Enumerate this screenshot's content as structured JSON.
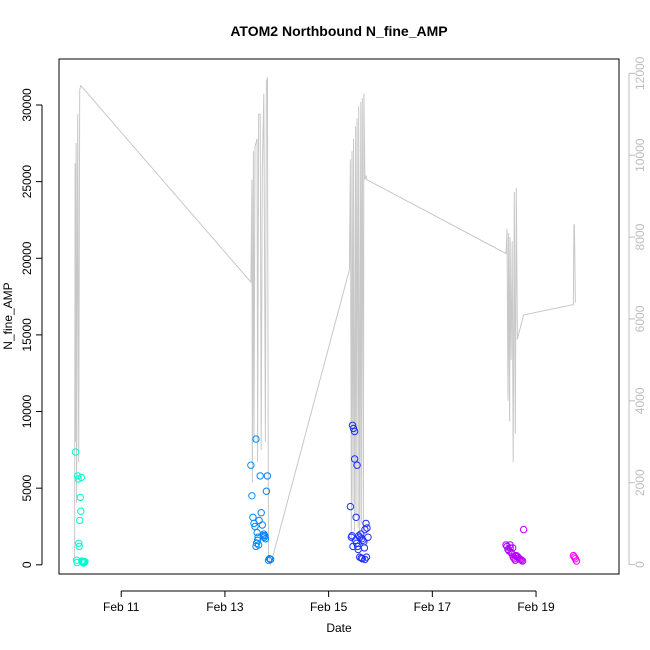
{
  "chart_data": {
    "type": "scatter",
    "title": "ATOM2 Northbound N_fine_AMP",
    "xlabel": "Date",
    "ylabel": "N_fine_AMP",
    "y2label": "",
    "xlim_days": [
      9.8,
      20.6
    ],
    "ylim": [
      -600,
      33000
    ],
    "y2lim": [
      -230,
      12350
    ],
    "x_ticks": [
      {
        "label": "Feb 11",
        "day": 11
      },
      {
        "label": "Feb 13",
        "day": 13
      },
      {
        "label": "Feb 15",
        "day": 15
      },
      {
        "label": "Feb 17",
        "day": 17
      },
      {
        "label": "Feb 19",
        "day": 19
      }
    ],
    "y_ticks": [
      0,
      5000,
      10000,
      15000,
      20000,
      25000,
      30000
    ],
    "y2_ticks": [
      0,
      2000,
      4000,
      6000,
      8000,
      10000,
      12000
    ],
    "grid": false,
    "legend": "none",
    "colors": {
      "line": "#c8c8c8",
      "right_axis": "#bdbdbd",
      "point_gradient": [
        "#00ffd0",
        "#00c8ff",
        "#0040ff",
        "#6a00ff",
        "#ff00ff"
      ]
    },
    "series": [
      {
        "kind": "points",
        "axis": "left",
        "x": [
          10.12,
          10.14,
          10.15,
          10.16,
          10.17,
          10.18,
          10.19,
          10.2,
          10.21,
          10.22,
          10.23,
          10.24,
          10.25,
          10.26,
          10.27,
          10.28,
          10.29,
          10.3,
          13.5,
          13.52,
          13.54,
          13.56,
          13.58,
          13.6,
          13.62,
          13.63,
          13.64,
          13.66,
          13.68,
          13.7,
          13.72,
          13.74,
          13.76,
          13.78,
          13.8,
          13.82,
          13.84,
          13.86,
          13.88,
          13.6,
          13.61,
          13.65,
          13.75,
          13.77,
          15.42,
          15.44,
          15.46,
          15.48,
          15.5,
          15.52,
          15.54,
          15.56,
          15.58,
          15.6,
          15.62,
          15.64,
          15.66,
          15.68,
          15.7,
          15.72,
          15.74,
          15.76,
          15.5,
          15.55,
          15.6,
          15.65,
          15.7,
          15.45,
          15.47,
          15.53,
          15.57,
          15.63,
          15.69,
          15.73,
          18.42,
          18.44,
          18.46,
          18.48,
          18.5,
          18.52,
          18.54,
          18.56,
          18.58,
          18.6,
          18.62,
          18.64,
          18.66,
          18.68,
          18.7,
          18.72,
          18.74,
          18.76,
          18.5,
          18.55,
          18.6,
          19.72,
          19.74,
          19.76,
          19.78
        ],
        "y": [
          7350,
          300,
          150,
          5800,
          5600,
          1400,
          1200,
          2900,
          4400,
          3500,
          5700,
          250,
          200,
          180,
          120,
          150,
          160,
          200,
          6500,
          4500,
          3100,
          2700,
          2500,
          8200,
          2100,
          1600,
          1800,
          2900,
          5800,
          3400,
          2600,
          1900,
          1800,
          1700,
          4800,
          5800,
          300,
          400,
          350,
          1200,
          1400,
          1300,
          2000,
          1900,
          3800,
          1800,
          9100,
          8900,
          8700,
          1600,
          1400,
          1200,
          1900,
          1800,
          2000,
          1700,
          1600,
          1500,
          2300,
          2700,
          2400,
          1800,
          6900,
          6500,
          500,
          400,
          350,
          1900,
          1200,
          3100,
          1000,
          450,
          1100,
          500,
          1300,
          1200,
          1000,
          900,
          1100,
          800,
          700,
          500,
          400,
          300,
          600,
          550,
          450,
          400,
          350,
          300,
          250,
          2300,
          1300,
          1100,
          600,
          600,
          500,
          400,
          250
        ]
      },
      {
        "kind": "line",
        "axis": "right",
        "x": [
          10.1,
          10.11,
          10.12,
          10.13,
          10.14,
          10.16,
          10.18,
          10.2,
          10.22,
          13.5,
          13.52,
          13.53,
          13.55,
          13.56,
          13.58,
          13.6,
          13.62,
          13.63,
          13.65,
          13.68,
          13.7,
          13.72,
          13.75,
          13.78,
          13.8,
          13.82,
          13.84,
          13.88,
          15.4,
          15.42,
          15.44,
          15.45,
          15.47,
          15.48,
          15.5,
          15.52,
          15.53,
          15.55,
          15.57,
          15.58,
          15.6,
          15.62,
          15.63,
          15.65,
          15.67,
          15.68,
          15.7,
          15.72,
          15.74,
          18.42,
          18.44,
          18.46,
          18.47,
          18.49,
          18.5,
          18.52,
          18.54,
          18.56,
          18.58,
          18.6,
          18.62,
          18.64,
          18.66,
          18.68,
          18.7,
          18.72,
          18.74,
          18.76,
          19.72,
          19.73,
          19.74,
          19.76
        ],
        "y": [
          100,
          9800,
          3000,
          10300,
          1500,
          11000,
          2500,
          11600,
          11700,
          6900,
          9400,
          2000,
          10100,
          3000,
          10200,
          10300,
          10400,
          2500,
          11000,
          11000,
          2800,
          9600,
          11500,
          3000,
          11800,
          11900,
          200,
          0,
          7200,
          9900,
          500,
          10100,
          1500,
          10400,
          800,
          10700,
          1200,
          10900,
          900,
          11200,
          600,
          11300,
          1000,
          11400,
          700,
          11500,
          9400,
          9500,
          9400,
          7600,
          8200,
          4000,
          8100,
          3500,
          8000,
          5000,
          7900,
          2500,
          9100,
          3200,
          9200,
          5500,
          5600,
          5700,
          5800,
          5900,
          6000,
          6100,
          6350,
          8300,
          8300,
          6400
        ]
      }
    ]
  }
}
